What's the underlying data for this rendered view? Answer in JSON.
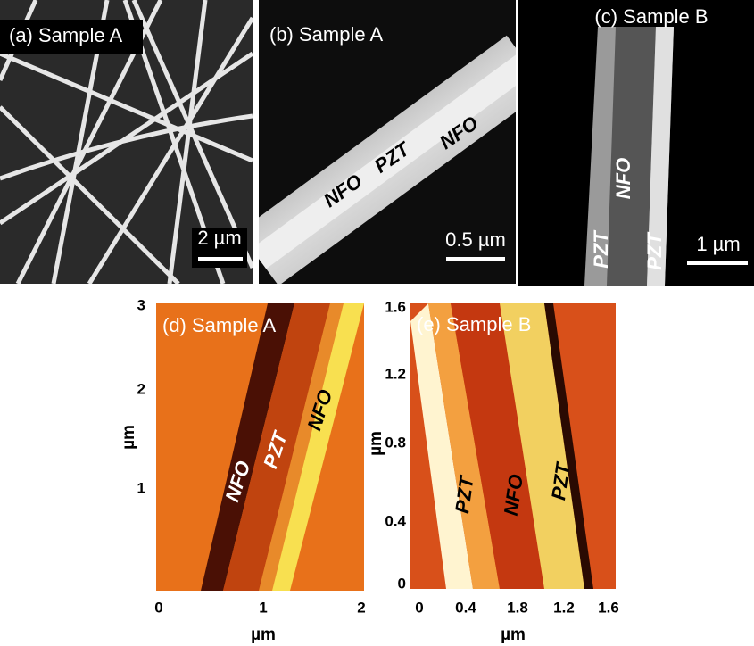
{
  "panels": [
    {
      "label": "(a) Sample A",
      "scale_bar": "2 µm"
    },
    {
      "label": "(b) Sample A",
      "annotations": [
        "NFO",
        "PZT",
        "NFO"
      ],
      "scale_bar": "0.5 µm"
    },
    {
      "label": "(c) Sample B",
      "annotations": [
        "NFO",
        "PZT",
        "PZT"
      ],
      "scale_bar": "1 µm"
    },
    {
      "label": "(d) Sample A",
      "annotations": [
        "NFO",
        "PZT",
        "NFO"
      ],
      "x_label": "µm",
      "y_label": "µm",
      "x_ticks": [
        "0",
        "1",
        "2"
      ],
      "y_ticks": [
        "3",
        "2",
        "1"
      ]
    },
    {
      "label": "(e) Sample B",
      "annotations": [
        "PZT",
        "NFO",
        "PZT"
      ],
      "x_label": "µm",
      "y_label": "µm",
      "x_ticks": [
        "0",
        "0.4",
        "1.8",
        "1.2",
        "1.6"
      ],
      "y_ticks": [
        "1.6",
        "1.2",
        "0.8",
        "0.4",
        "0"
      ]
    }
  ]
}
